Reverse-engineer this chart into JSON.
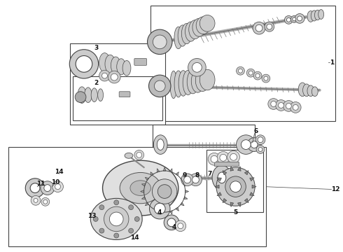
{
  "background_color": "#ffffff",
  "fig_width": 4.9,
  "fig_height": 3.6,
  "dpi": 100,
  "gray_line": "#555555",
  "gray_fill": "#cccccc",
  "gray_dark": "#333333",
  "gray_light": "#eeeeee"
}
